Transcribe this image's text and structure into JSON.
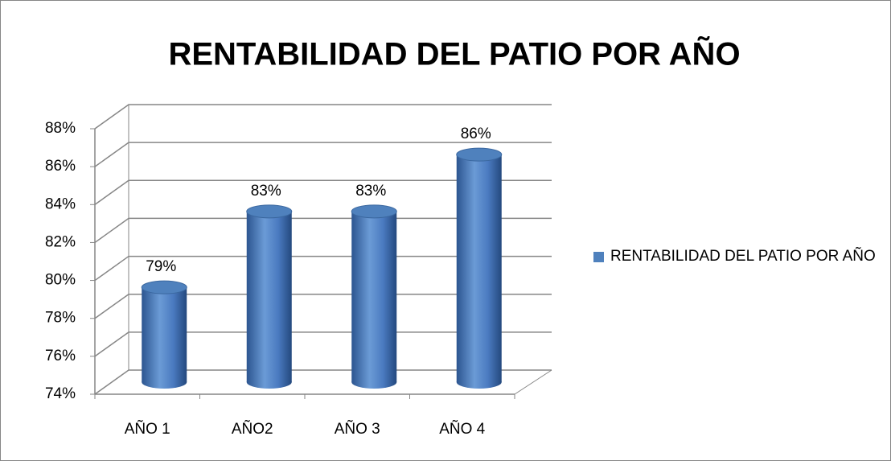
{
  "chart_data": {
    "type": "bar3d",
    "title": "RENTABILIDAD DEL PATIO POR AÑO",
    "categories": [
      "AÑO 1",
      "AÑO2",
      "AÑO 3",
      "AÑO 4"
    ],
    "series": [
      {
        "name": "RENTABILIDAD DEL PATIO POR AÑO",
        "color": "#4f81bd",
        "values": [
          79,
          83,
          83,
          86
        ],
        "value_labels": [
          "79%",
          "83%",
          "83%",
          "86%"
        ]
      }
    ],
    "ylim": [
      74,
      88
    ],
    "yticks": [
      {
        "value": 74,
        "label": "74%"
      },
      {
        "value": 76,
        "label": "76%"
      },
      {
        "value": 78,
        "label": "78%"
      },
      {
        "value": 80,
        "label": "80%"
      },
      {
        "value": 82,
        "label": "82%"
      },
      {
        "value": 84,
        "label": "84%"
      },
      {
        "value": 86,
        "label": "86%"
      },
      {
        "value": 88,
        "label": "88%"
      }
    ],
    "grid": true,
    "legend": "right"
  }
}
